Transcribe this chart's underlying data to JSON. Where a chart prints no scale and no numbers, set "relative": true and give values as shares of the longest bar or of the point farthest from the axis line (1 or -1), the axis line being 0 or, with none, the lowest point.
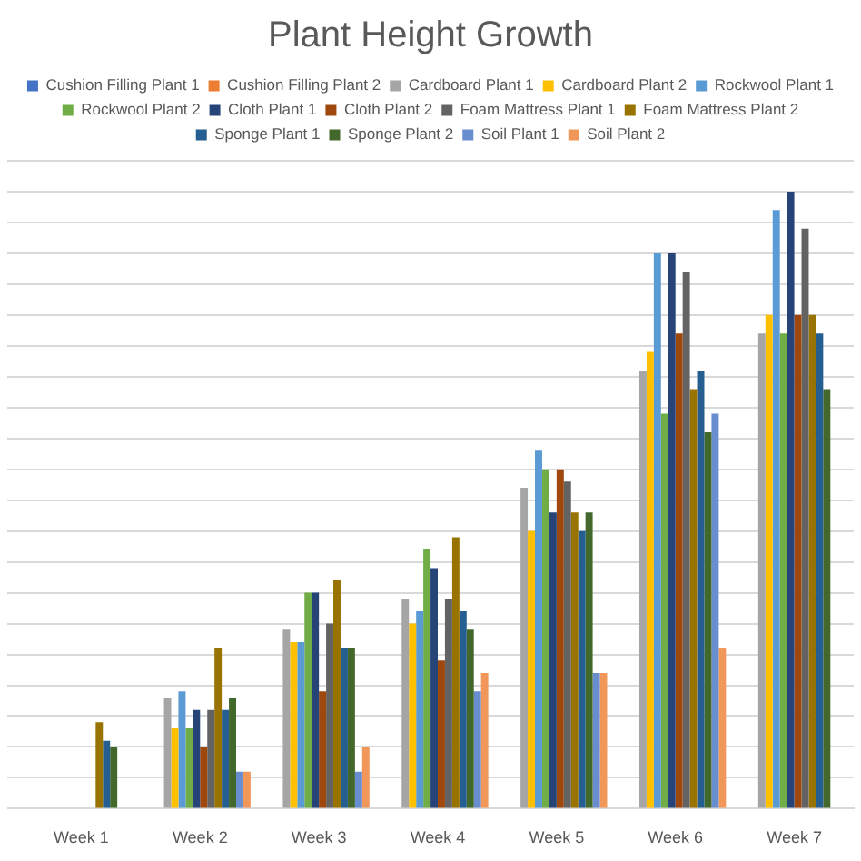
{
  "chart_data": {
    "type": "bar",
    "title": "Plant Height Growth",
    "relative": true,
    "grid": "y",
    "legend": "top",
    "categories": [
      "Week 1",
      "Week 2",
      "Week 3",
      "Week 4",
      "Week 5",
      "Week 6",
      "Week 7"
    ],
    "series": [
      {
        "name": "Cushion Filling Plant 1",
        "color": "#4472c4",
        "values": [
          null,
          0,
          0,
          0,
          0,
          0,
          0
        ]
      },
      {
        "name": "Cushion Filling Plant 2",
        "color": "#ed7d31",
        "values": [
          null,
          0,
          0,
          0,
          0,
          0,
          0
        ]
      },
      {
        "name": "Cardboard Plant 1",
        "color": "#a5a5a5",
        "values": [
          null,
          0.18,
          0.29,
          0.34,
          0.52,
          0.71,
          0.77
        ]
      },
      {
        "name": "Cardboard Plant 2",
        "color": "#ffc000",
        "values": [
          null,
          0.13,
          0.27,
          0.3,
          0.45,
          0.74,
          0.8
        ]
      },
      {
        "name": "Rockwool Plant 1",
        "color": "#5b9bd5",
        "values": [
          null,
          0.19,
          0.27,
          0.32,
          0.58,
          0.9,
          0.97
        ]
      },
      {
        "name": "Rockwool Plant 2",
        "color": "#70ad47",
        "values": [
          null,
          0.13,
          0.35,
          0.42,
          0.55,
          0.64,
          0.77
        ]
      },
      {
        "name": "Cloth Plant 1",
        "color": "#264478",
        "values": [
          null,
          0.16,
          0.35,
          0.39,
          0.48,
          0.9,
          1
        ]
      },
      {
        "name": "Cloth Plant 2",
        "color": "#9e480e",
        "values": [
          null,
          0.1,
          0.19,
          0.24,
          0.55,
          0.77,
          0.8
        ]
      },
      {
        "name": "Foam Mattress Plant 1",
        "color": "#636363",
        "values": [
          null,
          0.16,
          0.3,
          0.34,
          0.53,
          0.87,
          0.94
        ]
      },
      {
        "name": "Foam Mattress Plant 2",
        "color": "#997300",
        "values": [
          0.14,
          0.26,
          0.37,
          0.44,
          0.48,
          0.68,
          0.8
        ]
      },
      {
        "name": "Sponge Plant 1",
        "color": "#255e91",
        "values": [
          0.11,
          0.16,
          0.26,
          0.32,
          0.45,
          0.71,
          0.77
        ]
      },
      {
        "name": "Sponge Plant 2",
        "color": "#43682b",
        "values": [
          0.1,
          0.18,
          0.26,
          0.29,
          0.48,
          0.61,
          0.68
        ]
      },
      {
        "name": "Soil Plant 1",
        "color": "#698ed0",
        "values": [
          0,
          0.06,
          0.06,
          0.19,
          0.22,
          0.64,
          null
        ]
      },
      {
        "name": "Soil Plant 2",
        "color": "#f1975a",
        "values": [
          0,
          0.06,
          0.1,
          0.22,
          0.22,
          0.26,
          null
        ]
      }
    ]
  }
}
